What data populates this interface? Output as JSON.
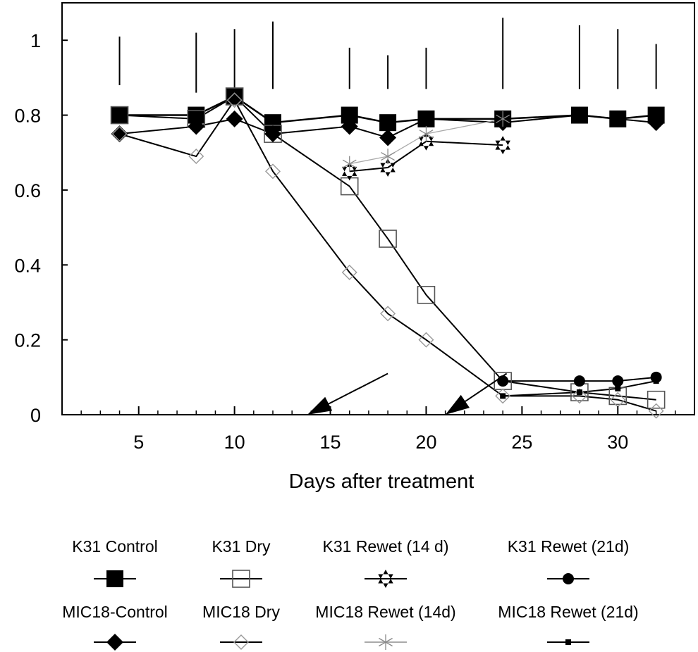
{
  "chart_data": {
    "type": "line",
    "title": "",
    "xlabel": "Days after treatment",
    "ylabel": "",
    "xlim": [
      1,
      34
    ],
    "ylim": [
      0,
      1.1
    ],
    "x_ticks": [
      5,
      10,
      15,
      20,
      25,
      30
    ],
    "y_ticks": [
      0,
      0.2,
      0.4,
      0.6,
      0.8,
      1
    ],
    "y_tick_labels": [
      "0",
      "0.2",
      "0.4",
      "0.6",
      "0.8",
      "1"
    ],
    "grid": false,
    "legend_position": "bottom",
    "error_bars": [
      {
        "x": 4,
        "low": 0.88,
        "high": 1.01
      },
      {
        "x": 8,
        "low": 0.86,
        "high": 1.02
      },
      {
        "x": 10,
        "low": 0.87,
        "high": 1.03
      },
      {
        "x": 12,
        "low": 0.87,
        "high": 1.05
      },
      {
        "x": 16,
        "low": 0.87,
        "high": 0.98
      },
      {
        "x": 18,
        "low": 0.87,
        "high": 0.96
      },
      {
        "x": 20,
        "low": 0.87,
        "high": 0.98
      },
      {
        "x": 24,
        "low": 0.87,
        "high": 1.06
      },
      {
        "x": 28,
        "low": 0.87,
        "high": 1.04
      },
      {
        "x": 30,
        "low": 0.87,
        "high": 1.03
      },
      {
        "x": 32,
        "low": 0.87,
        "high": 0.99
      }
    ],
    "annotations": [
      {
        "type": "arrow",
        "from": [
          18,
          0.11
        ],
        "to": [
          13.8,
          0
        ]
      },
      {
        "type": "arrow",
        "from": [
          24.2,
          0.11
        ],
        "to": [
          21,
          0
        ]
      }
    ],
    "series": [
      {
        "name": "K31 Control",
        "marker": "square-filled",
        "x": [
          4,
          8,
          10,
          12,
          16,
          18,
          20,
          24,
          28,
          30,
          32
        ],
        "y": [
          0.8,
          0.8,
          0.85,
          0.78,
          0.8,
          0.78,
          0.79,
          0.79,
          0.8,
          0.79,
          0.8
        ]
      },
      {
        "name": "K31 Dry",
        "marker": "square-open",
        "x": [
          4,
          8,
          10,
          12,
          16,
          18,
          20,
          24,
          28,
          30,
          32
        ],
        "y": [
          0.8,
          0.79,
          0.85,
          0.75,
          0.61,
          0.47,
          0.32,
          0.09,
          0.06,
          0.05,
          0.04
        ]
      },
      {
        "name": "K31 Rewet (14 d)",
        "marker": "star-filled",
        "x": [
          16,
          18,
          20,
          24
        ],
        "y": [
          0.65,
          0.66,
          0.73,
          0.72
        ]
      },
      {
        "name": "K31 Rewet (21d)",
        "marker": "circle-filled",
        "x": [
          24,
          28,
          30,
          32
        ],
        "y": [
          0.09,
          0.09,
          0.09,
          0.1
        ]
      },
      {
        "name": "MIC18-Control",
        "marker": "diamond-filled",
        "x": [
          4,
          8,
          10,
          12,
          16,
          18,
          20,
          24,
          28,
          30,
          32
        ],
        "y": [
          0.75,
          0.77,
          0.79,
          0.75,
          0.77,
          0.74,
          0.79,
          0.78,
          0.8,
          0.79,
          0.78
        ]
      },
      {
        "name": "MIC18 Dry",
        "marker": "diamond-open",
        "x": [
          4,
          8,
          10,
          12,
          16,
          18,
          20,
          24,
          28,
          30,
          32
        ],
        "y": [
          0.75,
          0.69,
          0.84,
          0.65,
          0.38,
          0.27,
          0.2,
          0.05,
          0.05,
          0.04,
          0.01
        ]
      },
      {
        "name": "MIC18 Rewet (14d)",
        "marker": "asterisk",
        "x": [
          16,
          18,
          20,
          24
        ],
        "y": [
          0.67,
          0.69,
          0.75,
          0.79
        ]
      },
      {
        "name": "MIC18 Rewet (21d)",
        "marker": "square-small",
        "x": [
          24,
          28,
          30,
          32
        ],
        "y": [
          0.05,
          0.06,
          0.07,
          0.09
        ]
      }
    ]
  }
}
